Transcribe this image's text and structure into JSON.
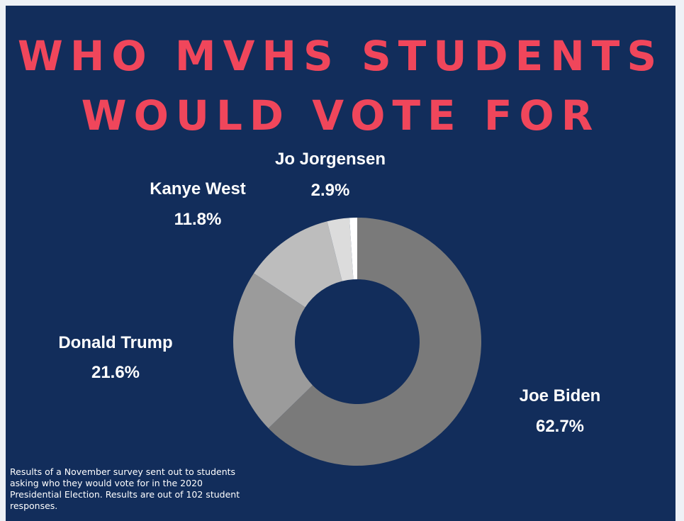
{
  "title": {
    "line1": "WHO MVHS STUDENTS",
    "line2": "WOULD VOTE FOR"
  },
  "chart_data": {
    "type": "pie",
    "style": "donut",
    "categories": [
      "Joe Biden",
      "Donald Trump",
      "Kanye West",
      "Jo Jorgensen"
    ],
    "values": [
      62.7,
      21.6,
      11.8,
      2.9
    ],
    "value_labels": [
      "62.7%",
      "21.6%",
      "11.8%",
      "2.9%"
    ],
    "colors": [
      "#7a7a7a",
      "#9b9b9b",
      "#bdbdbd",
      "#dcdcdc"
    ],
    "remainder_color": "#ffffff",
    "legend": "none"
  },
  "note": "Results of a November survey sent out to students asking who they would vote for in the 2020 Presidential Election. Results are out of 102 student responses.",
  "colors": {
    "background": "#122d5b",
    "title": "#f0465b",
    "text": "#ffffff"
  }
}
